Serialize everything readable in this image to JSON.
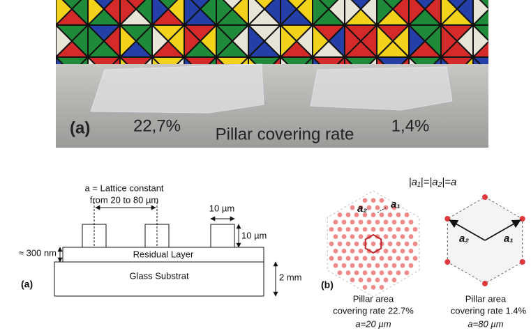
{
  "photo": {
    "label": "(a)",
    "left_rate": "22,7%",
    "caption": "Pillar covering rate",
    "right_rate": "1,4%"
  },
  "schematic": {
    "label": "(a)",
    "lattice_constant": "a = Lattice constant",
    "lattice_range": "from 20 to 80 µm",
    "pillar_width": "10 µm",
    "pillar_height": "10 µm",
    "residual_thickness": "≈ 300 nm",
    "residual_layer": "Residual Layer",
    "substrate": "Glass Substrat",
    "substrate_thickness": "2 mm"
  },
  "lattice": {
    "label": "(b)",
    "equation": "|a₁|=|a₂|=a",
    "vector_1": "a₁",
    "vector_2": "a₂",
    "left": {
      "line1": "Pillar area",
      "line2": "covering rate 22.7%",
      "line3": "a=20 µm"
    },
    "right": {
      "line1": "Pillar area",
      "line2": "covering rate 1.4%",
      "line3": "a=80 µm"
    }
  }
}
